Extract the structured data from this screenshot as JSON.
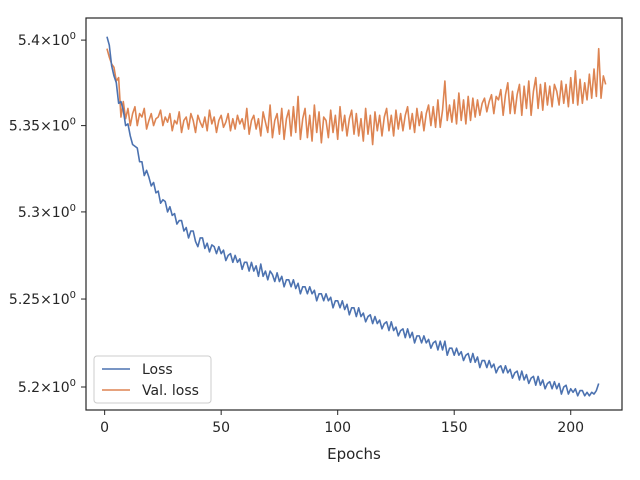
{
  "chart_data": {
    "type": "line",
    "title": "",
    "xlabel": "Epochs",
    "ylabel": "",
    "xlim": [
      -8,
      222
    ],
    "ylim": [
      5.187,
      5.413
    ],
    "yscale": "log",
    "grid": false,
    "legend_position": "lower-left",
    "x_ticks": [
      {
        "value": 0,
        "label": "0"
      },
      {
        "value": 50,
        "label": "50"
      },
      {
        "value": 100,
        "label": "100"
      },
      {
        "value": 150,
        "label": "150"
      },
      {
        "value": 200,
        "label": "200"
      }
    ],
    "y_ticks": [
      {
        "value": 5.2,
        "label_base": "5.2×10",
        "label_exp": "0"
      },
      {
        "value": 5.25,
        "label_base": "5.25×10",
        "label_exp": "0"
      },
      {
        "value": 5.3,
        "label_base": "5.3×10",
        "label_exp": "0"
      },
      {
        "value": 5.35,
        "label_base": "5.35×10",
        "label_exp": "0"
      },
      {
        "value": 5.4,
        "label_base": "5.4×10",
        "label_exp": "0"
      }
    ],
    "series": [
      {
        "name": "Loss",
        "color": "#4c72b0",
        "x_start": 1,
        "values": [
          5.402,
          5.395,
          5.387,
          5.378,
          5.372,
          5.366,
          5.362,
          5.358,
          5.352,
          5.348,
          5.344,
          5.34,
          5.336,
          5.334,
          5.331,
          5.328,
          5.324,
          5.322,
          5.319,
          5.317,
          5.314,
          5.312,
          5.31,
          5.308,
          5.306,
          5.304,
          5.302,
          5.3,
          5.299,
          5.297,
          5.296,
          5.294,
          5.292,
          5.291,
          5.29,
          5.288,
          5.287,
          5.286,
          5.285,
          5.284,
          5.283,
          5.282,
          5.281,
          5.281,
          5.28,
          5.279,
          5.279,
          5.278,
          5.277,
          5.277,
          5.276,
          5.275,
          5.274,
          5.274,
          5.273,
          5.272,
          5.272,
          5.271,
          5.27,
          5.27,
          5.269,
          5.268,
          5.268,
          5.267,
          5.267,
          5.266,
          5.266,
          5.265,
          5.265,
          5.264,
          5.264,
          5.263,
          5.262,
          5.262,
          5.261,
          5.261,
          5.26,
          5.26,
          5.259,
          5.259,
          5.258,
          5.257,
          5.257,
          5.256,
          5.256,
          5.255,
          5.255,
          5.254,
          5.254,
          5.253,
          5.252,
          5.252,
          5.251,
          5.251,
          5.25,
          5.25,
          5.249,
          5.248,
          5.248,
          5.247,
          5.247,
          5.246,
          5.245,
          5.245,
          5.244,
          5.244,
          5.243,
          5.242,
          5.242,
          5.241,
          5.24,
          5.24,
          5.239,
          5.239,
          5.238,
          5.237,
          5.237,
          5.236,
          5.236,
          5.235,
          5.235,
          5.234,
          5.234,
          5.233,
          5.232,
          5.232,
          5.231,
          5.231,
          5.23,
          5.23,
          5.229,
          5.229,
          5.228,
          5.228,
          5.227,
          5.227,
          5.226,
          5.226,
          5.225,
          5.225,
          5.224,
          5.224,
          5.223,
          5.223,
          5.222,
          5.222,
          5.221,
          5.221,
          5.22,
          5.22,
          5.219,
          5.219,
          5.218,
          5.218,
          5.217,
          5.217,
          5.216,
          5.216,
          5.215,
          5.215,
          5.214,
          5.214,
          5.213,
          5.213,
          5.212,
          5.212,
          5.211,
          5.211,
          5.21,
          5.21,
          5.21,
          5.209,
          5.209,
          5.208,
          5.208,
          5.207,
          5.207,
          5.206,
          5.206,
          5.205,
          5.205,
          5.205,
          5.204,
          5.204,
          5.203,
          5.203,
          5.202,
          5.202,
          5.202,
          5.201,
          5.201,
          5.201,
          5.2,
          5.2,
          5.2,
          5.199,
          5.199,
          5.199,
          5.198,
          5.198,
          5.198,
          5.197,
          5.197,
          5.197,
          5.197,
          5.196,
          5.196,
          5.196,
          5.196,
          5.196,
          5.197,
          5.198
        ],
        "noise": [
          0,
          0.002,
          -0.002,
          0.001,
          0.003,
          -0.003,
          0.002,
          0.001,
          -0.002,
          0.003,
          0,
          -0.001,
          0.002,
          0.003,
          -0.002,
          0.001,
          -0.003,
          0.002,
          0.001,
          -0.002,
          0.003,
          -0.001,
          0.002,
          -0.003,
          0.001,
          0.002,
          -0.002,
          0.003,
          -0.001,
          0.002,
          -0.003,
          0.001,
          0.003,
          -0.002,
          0.001,
          -0.003,
          0.002,
          0.003,
          -0.002,
          -0.004,
          0.002,
          0.003,
          -0.002,
          0.001,
          -0.003,
          0.002,
          0.001,
          -0.002,
          0.003,
          -0.001,
          0.002,
          -0.003,
          0.001,
          0.002,
          -0.002,
          0.003,
          -0.001,
          0.002,
          -0.003,
          0.001,
          0.002,
          -0.002,
          0.003,
          -0.001,
          0.002,
          -0.003,
          0.004,
          -0.002,
          0.001,
          -0.003,
          0.002,
          0.001,
          -0.002,
          0.003,
          -0.001,
          0.002,
          -0.003,
          0.001,
          0.002,
          -0.002,
          0.003,
          -0.001,
          0.002,
          -0.003,
          0.001,
          0.002,
          -0.002,
          0.003,
          -0.001,
          0.002,
          -0.003,
          0.001,
          0.002,
          -0.002,
          0.003,
          -0.001,
          0.002,
          -0.003,
          0.001,
          0.002,
          -0.002,
          0.003,
          -0.001,
          0.002,
          -0.003,
          0.001,
          0.002,
          -0.002,
          0.003,
          -0.001,
          0.002,
          -0.003,
          0.001,
          0.002,
          -0.002,
          0.003,
          -0.001,
          0.002,
          -0.003,
          0.001,
          0.002,
          -0.002,
          0.003,
          -0.001,
          0.002,
          -0.003,
          0.001,
          0.002,
          -0.002,
          0.003,
          -0.001,
          0.002,
          -0.003,
          0.001,
          0.002,
          -0.002,
          0.003,
          -0.001,
          0.002,
          -0.003,
          0.001,
          0.002,
          -0.002,
          0.003,
          -0.001,
          0.004,
          -0.003,
          0.001,
          0.002,
          -0.002,
          0.003,
          -0.001,
          0.002,
          -0.003,
          0.001,
          0.002,
          -0.002,
          0.003,
          -0.001,
          0.002,
          -0.003,
          0.001,
          0.002,
          -0.002,
          0.003,
          -0.001,
          0.002,
          -0.003,
          0.001,
          0.002,
          -0.002,
          0.003,
          -0.001,
          0.002,
          -0.003,
          0.001,
          0.002,
          -0.002,
          0.003,
          -0.001,
          0.002,
          -0.003,
          0.001,
          0.002,
          -0.002,
          0.003,
          -0.001,
          0.002,
          -0.003,
          0.001,
          0.002,
          -0.002,
          0.003,
          -0.001,
          0.002,
          -0.003,
          0.001,
          0.002,
          -0.002,
          0.001,
          -0.001,
          0.002,
          -0.002,
          0.001,
          0.001,
          -0.001,
          0.001,
          -0.001,
          0.001,
          0,
          0.001,
          0.004,
          -0.001
        ]
      },
      {
        "name": "Val. loss",
        "color": "#dd8452",
        "x_start": 1,
        "values": [
          5.395,
          5.39,
          5.386,
          5.384,
          5.38,
          5.372,
          5.365,
          5.36,
          5.356,
          5.354,
          5.353,
          5.353,
          5.353,
          5.352,
          5.352,
          5.352,
          5.351,
          5.351,
          5.351,
          5.351,
          5.351,
          5.351,
          5.351,
          5.351,
          5.351,
          5.351,
          5.35,
          5.35,
          5.35,
          5.35,
          5.35,
          5.35,
          5.35,
          5.35,
          5.35,
          5.35,
          5.35,
          5.35,
          5.35,
          5.35,
          5.35,
          5.35,
          5.35,
          5.35,
          5.35,
          5.35,
          5.35,
          5.35,
          5.35,
          5.35,
          5.35,
          5.35,
          5.35,
          5.35,
          5.35,
          5.35,
          5.35,
          5.35,
          5.35,
          5.35,
          5.35,
          5.35,
          5.35,
          5.35,
          5.35,
          5.35,
          5.35,
          5.35,
          5.35,
          5.35,
          5.35,
          5.35,
          5.35,
          5.35,
          5.35,
          5.35,
          5.35,
          5.35,
          5.35,
          5.35,
          5.35,
          5.35,
          5.35,
          5.35,
          5.35,
          5.35,
          5.35,
          5.35,
          5.35,
          5.35,
          5.35,
          5.35,
          5.35,
          5.35,
          5.35,
          5.35,
          5.35,
          5.35,
          5.35,
          5.35,
          5.35,
          5.35,
          5.35,
          5.35,
          5.35,
          5.35,
          5.35,
          5.35,
          5.35,
          5.35,
          5.35,
          5.35,
          5.35,
          5.35,
          5.35,
          5.35,
          5.35,
          5.35,
          5.35,
          5.351,
          5.351,
          5.351,
          5.351,
          5.351,
          5.351,
          5.351,
          5.351,
          5.352,
          5.352,
          5.352,
          5.352,
          5.352,
          5.352,
          5.353,
          5.353,
          5.353,
          5.353,
          5.353,
          5.354,
          5.354,
          5.354,
          5.354,
          5.355,
          5.355,
          5.355,
          5.355,
          5.356,
          5.356,
          5.356,
          5.356,
          5.357,
          5.357,
          5.357,
          5.357,
          5.358,
          5.358,
          5.358,
          5.358,
          5.359,
          5.359,
          5.359,
          5.359,
          5.36,
          5.36,
          5.36,
          5.36,
          5.361,
          5.361,
          5.361,
          5.361,
          5.362,
          5.362,
          5.362,
          5.362,
          5.362,
          5.363,
          5.363,
          5.363,
          5.363,
          5.364,
          5.364,
          5.364,
          5.364,
          5.364,
          5.365,
          5.365,
          5.365,
          5.365,
          5.365,
          5.366,
          5.366,
          5.366,
          5.366,
          5.366,
          5.367,
          5.367,
          5.367,
          5.367,
          5.367,
          5.368,
          5.368,
          5.368,
          5.368,
          5.368,
          5.368,
          5.369,
          5.369,
          5.369,
          5.369,
          5.369,
          5.37,
          5.37,
          5.37,
          5.369,
          5.368
        ],
        "noise": [
          0,
          0,
          0,
          0,
          -0.004,
          0.006,
          -0.01,
          0.004,
          -0.002,
          0.006,
          -0.003,
          0.004,
          0.008,
          -0.002,
          0.005,
          0.003,
          0.009,
          -0.003,
          0.002,
          0.006,
          -0.001,
          0.003,
          0.004,
          0.008,
          -0.001,
          0.004,
          0.002,
          0.007,
          -0.003,
          0.003,
          0.001,
          0.008,
          -0.004,
          0.003,
          0.005,
          -0.002,
          0.007,
          0.003,
          -0.004,
          0.006,
          0.002,
          -0.001,
          0.005,
          -0.003,
          0.009,
          0.001,
          0.005,
          -0.004,
          0.003,
          0.006,
          -0.001,
          0.002,
          0.007,
          -0.003,
          0.004,
          -0.002,
          0.006,
          0.001,
          0.004,
          -0.002,
          0.01,
          -0.005,
          0.003,
          0.006,
          -0.002,
          0.004,
          -0.006,
          0.008,
          0.002,
          -0.004,
          0.012,
          -0.007,
          0.003,
          0.007,
          -0.005,
          0.01,
          -0.008,
          0.004,
          0.009,
          -0.006,
          0.011,
          -0.004,
          0.017,
          -0.008,
          0.004,
          0.01,
          -0.007,
          0.006,
          -0.009,
          0.012,
          -0.004,
          0.008,
          -0.01,
          0.005,
          0.003,
          -0.007,
          0.009,
          -0.004,
          0.006,
          -0.008,
          0.011,
          -0.003,
          0.006,
          -0.006,
          0.004,
          0.009,
          -0.005,
          0.007,
          -0.006,
          0.004,
          -0.009,
          0.01,
          -0.005,
          0.006,
          -0.011,
          0.008,
          -0.003,
          0.006,
          -0.006,
          0.004,
          0.009,
          -0.004,
          0.005,
          -0.007,
          0.008,
          -0.003,
          0.006,
          -0.005,
          0.004,
          0.009,
          -0.004,
          0.005,
          -0.006,
          0.007,
          -0.003,
          0.005,
          -0.006,
          0.004,
          0.008,
          -0.004,
          0.007,
          -0.005,
          0.01,
          -0.006,
          0.004,
          0.021,
          -0.003,
          0.006,
          -0.004,
          0.009,
          -0.006,
          0.012,
          -0.004,
          0.008,
          -0.007,
          0.009,
          -0.005,
          0.008,
          -0.004,
          0.006,
          -0.003,
          0.004,
          0.006,
          -0.002,
          0.004,
          0.008,
          -0.004,
          0.006,
          0.004,
          0.01,
          -0.006,
          0.006,
          0.013,
          -0.005,
          0.008,
          -0.006,
          0.005,
          0.011,
          -0.007,
          0.009,
          -0.004,
          0.012,
          -0.008,
          0.006,
          0.013,
          -0.005,
          0.009,
          -0.006,
          0.01,
          -0.004,
          0.007,
          -0.005,
          0.008,
          0.004,
          -0.005,
          0.009,
          -0.004,
          0.007,
          -0.006,
          0.01,
          -0.005,
          0.014,
          -0.006,
          0.009,
          -0.005,
          0.006,
          -0.004,
          0.011,
          -0.003,
          0.014,
          -0.003,
          0.025,
          -0.004,
          0.01,
          0.006,
          -0.002
        ]
      }
    ]
  }
}
